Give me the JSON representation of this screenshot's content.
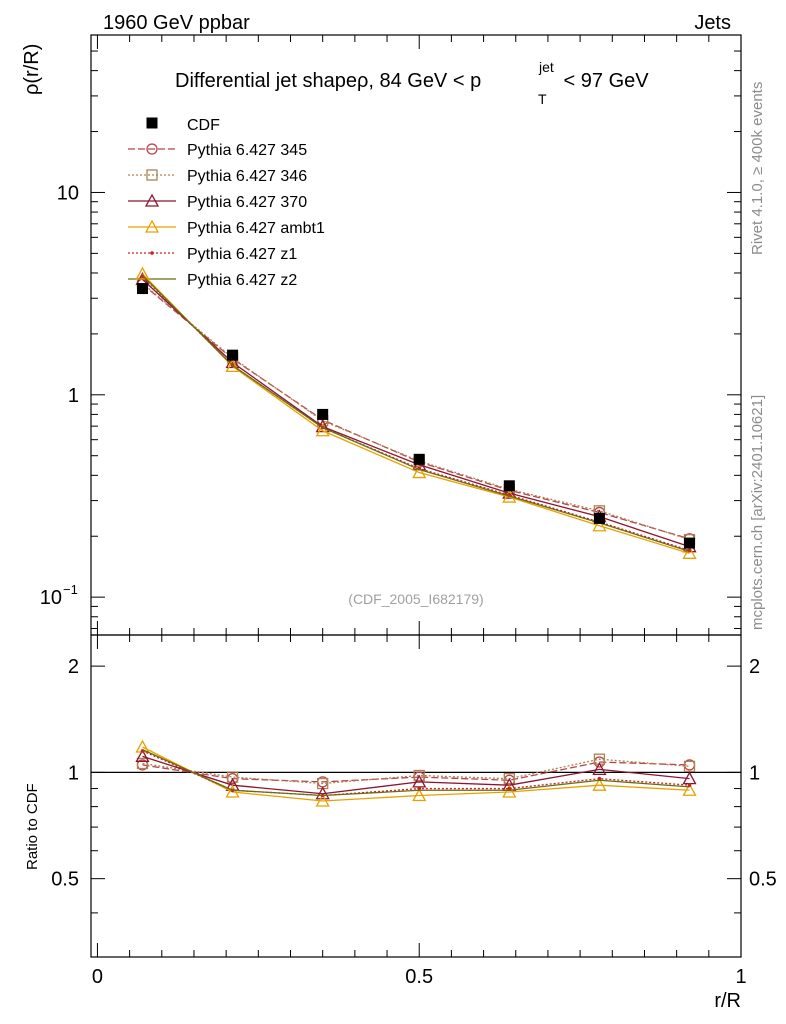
{
  "header": {
    "left": "1960 GeV ppbar",
    "right": "Jets"
  },
  "side_labels": {
    "rivet": "Rivet 4.1.0, ≥ 400k events",
    "mcplots": "mcplots.cern.ch [arXiv:2401.10621]"
  },
  "chart_data": {
    "type": "line",
    "title_parts": {
      "main": "Differential jet shapeρ, 84 GeV < p",
      "sup": "jet",
      "sub": "T",
      "tail": " < 97 GeV"
    },
    "analysis_tag": "(CDF_2005_I682179)",
    "xlabel": "r/R",
    "ylabel": "ρ(r/R)",
    "ratio_ylabel": "Ratio to CDF",
    "xlim": [
      -0.01,
      1.0
    ],
    "main_ylim": [
      0.065,
      60
    ],
    "main_yscale": "log",
    "ratio_ylim": [
      0.3,
      2.45
    ],
    "ratio_yscale": "log",
    "x_ticks": [
      0,
      0.5,
      1
    ],
    "x_tick_labels": [
      "0",
      "0.5",
      "1"
    ],
    "main_y_ticks": [
      {
        "value": 10,
        "label": "10"
      },
      {
        "value": 1,
        "label": "1"
      },
      {
        "value": 0.1,
        "label": "10",
        "sup": "−1"
      }
    ],
    "ratio_y_ticks": [
      {
        "value": 2,
        "label": "2"
      },
      {
        "value": 1,
        "label": "1"
      },
      {
        "value": 0.5,
        "label": "0.5"
      }
    ],
    "x": [
      0.07,
      0.21,
      0.35,
      0.5,
      0.64,
      0.78,
      0.92
    ],
    "data": {
      "name": "CDF",
      "values": [
        3.35,
        1.57,
        0.8,
        0.48,
        0.355,
        0.245,
        0.185
      ]
    },
    "series": [
      {
        "name": "Pythia 6.427 345",
        "color": "#b5444a",
        "dash": "7,3",
        "marker": "circle",
        "ratio": [
          1.05,
          0.96,
          0.94,
          0.97,
          0.95,
          1.07,
          1.05
        ]
      },
      {
        "name": "Pythia 6.427 346",
        "color": "#b08050",
        "dash": "2,2",
        "marker": "square",
        "ratio": [
          1.06,
          0.97,
          0.93,
          0.98,
          0.96,
          1.09,
          1.04
        ]
      },
      {
        "name": "Pythia 6.427 370",
        "color": "#8b1530",
        "dash": "",
        "marker": "triangle",
        "ratio": [
          1.11,
          0.92,
          0.87,
          0.94,
          0.92,
          1.02,
          0.96
        ]
      },
      {
        "name": "Pythia 6.427 ambt1",
        "color": "#e8a000",
        "dash": "",
        "marker": "triangle",
        "ratio": [
          1.18,
          0.88,
          0.83,
          0.86,
          0.88,
          0.92,
          0.89
        ]
      },
      {
        "name": "Pythia 6.427 z1",
        "color": "#cc2020",
        "dash": "2,2",
        "marker": "dot",
        "ratio": [
          1.15,
          0.89,
          0.86,
          0.9,
          0.9,
          0.96,
          0.92
        ]
      },
      {
        "name": "Pythia 6.427 z2",
        "color": "#6b6b10",
        "dash": "",
        "marker": "none",
        "ratio": [
          1.16,
          0.89,
          0.86,
          0.89,
          0.89,
          0.95,
          0.91
        ]
      }
    ]
  }
}
